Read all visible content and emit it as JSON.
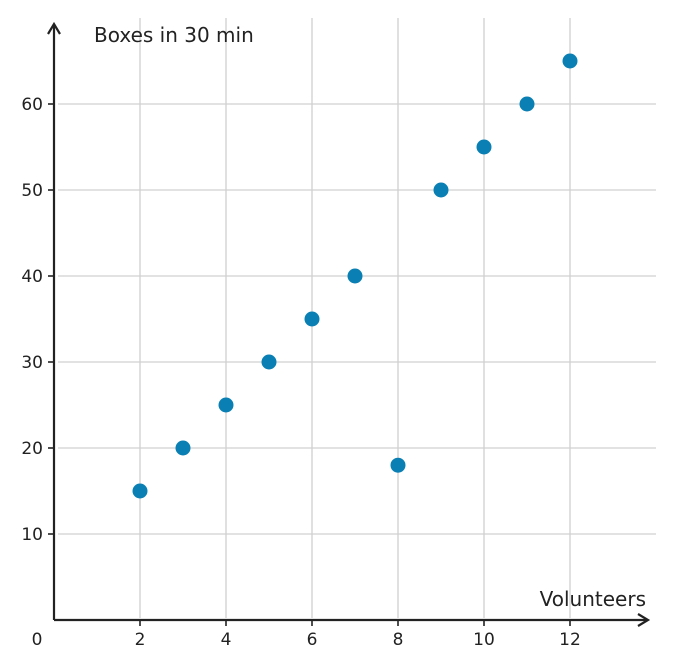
{
  "chart_data": {
    "type": "scatter",
    "title": "",
    "xlabel": "Volunteers",
    "ylabel": "Boxes in 30 min",
    "origin_label": "0",
    "xlim": [
      0,
      14
    ],
    "ylim": [
      0,
      70
    ],
    "x_ticks": [
      2,
      4,
      6,
      8,
      10,
      12
    ],
    "y_ticks": [
      10,
      20,
      30,
      40,
      50,
      60
    ],
    "x_tick_labels": [
      "2",
      "4",
      "6",
      "8",
      "10",
      "12"
    ],
    "y_tick_labels": [
      "10",
      "20",
      "30",
      "40",
      "50",
      "60"
    ],
    "grid": true,
    "point_color": "#0a7fb3",
    "series": [
      {
        "points": [
          {
            "x": 2,
            "y": 15
          },
          {
            "x": 3,
            "y": 20
          },
          {
            "x": 4,
            "y": 25
          },
          {
            "x": 5,
            "y": 30
          },
          {
            "x": 6,
            "y": 35
          },
          {
            "x": 7,
            "y": 40
          },
          {
            "x": 8,
            "y": 18
          },
          {
            "x": 9,
            "y": 50
          },
          {
            "x": 10,
            "y": 55
          },
          {
            "x": 11,
            "y": 60
          },
          {
            "x": 12,
            "y": 65
          }
        ]
      }
    ]
  }
}
